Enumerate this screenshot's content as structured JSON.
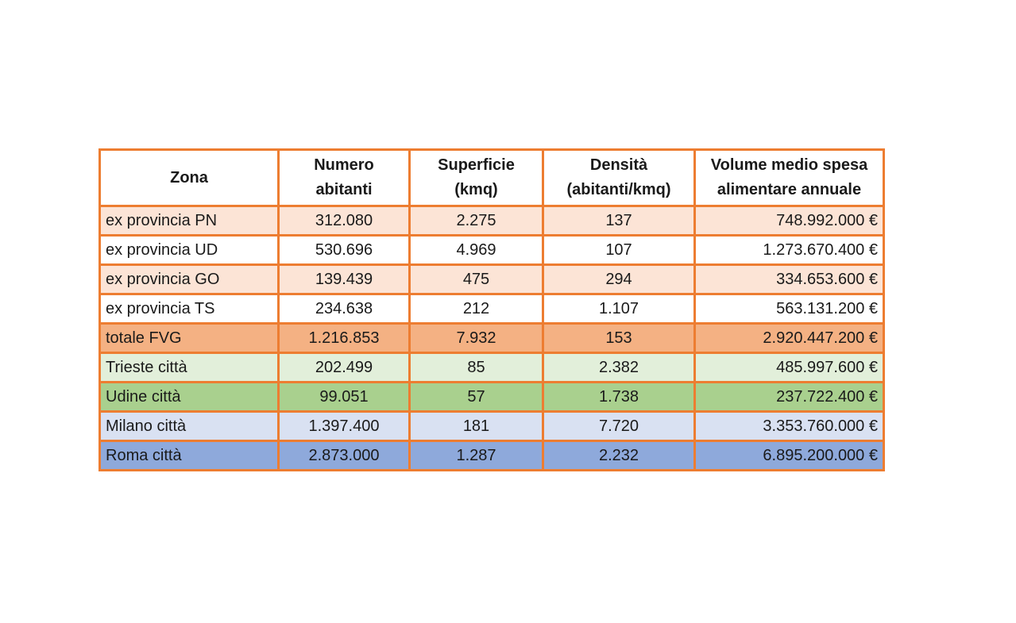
{
  "table": {
    "border_color": "#ED7D31",
    "columns": [
      {
        "id": "zona",
        "line1": "Zona",
        "line2": ""
      },
      {
        "id": "abitanti",
        "line1": "Numero",
        "line2": "abitanti"
      },
      {
        "id": "superficie",
        "line1": "Superficie",
        "line2": "(kmq)"
      },
      {
        "id": "densita",
        "line1": "Densità",
        "line2": "(abitanti/kmq)"
      },
      {
        "id": "volume",
        "line1": "Volume medio spesa",
        "line2": "alimentare annuale"
      }
    ],
    "rows": [
      {
        "zona": "ex provincia PN",
        "abitanti": "312.080",
        "superficie": "2.275",
        "densita": "137",
        "volume": "748.992.000 €",
        "bg": "#FCE4D6"
      },
      {
        "zona": "ex provincia UD",
        "abitanti": "530.696",
        "superficie": "4.969",
        "densita": "107",
        "volume": "1.273.670.400 €",
        "bg": "#FFFFFF"
      },
      {
        "zona": "ex provincia GO",
        "abitanti": "139.439",
        "superficie": "475",
        "densita": "294",
        "volume": "334.653.600 €",
        "bg": "#FCE4D6"
      },
      {
        "zona": "ex provincia TS",
        "abitanti": "234.638",
        "superficie": "212",
        "densita": "1.107",
        "volume": "563.131.200 €",
        "bg": "#FFFFFF"
      },
      {
        "zona": "totale FVG",
        "abitanti": "1.216.853",
        "superficie": "7.932",
        "densita": "153",
        "volume": "2.920.447.200 €",
        "bg": "#F4B183"
      },
      {
        "zona": "Trieste città",
        "abitanti": "202.499",
        "superficie": "85",
        "densita": "2.382",
        "volume": "485.997.600 €",
        "bg": "#E2EFDA"
      },
      {
        "zona": "Udine città",
        "abitanti": "99.051",
        "superficie": "57",
        "densita": "1.738",
        "volume": "237.722.400 €",
        "bg": "#A9D08E"
      },
      {
        "zona": "Milano città",
        "abitanti": "1.397.400",
        "superficie": "181",
        "densita": "7.720",
        "volume": "3.353.760.000 €",
        "bg": "#D9E1F2"
      },
      {
        "zona": "Roma città",
        "abitanti": "2.873.000",
        "superficie": "1.287",
        "densita": "2.232",
        "volume": "6.895.200.000 €",
        "bg": "#8EA9DB"
      }
    ]
  }
}
